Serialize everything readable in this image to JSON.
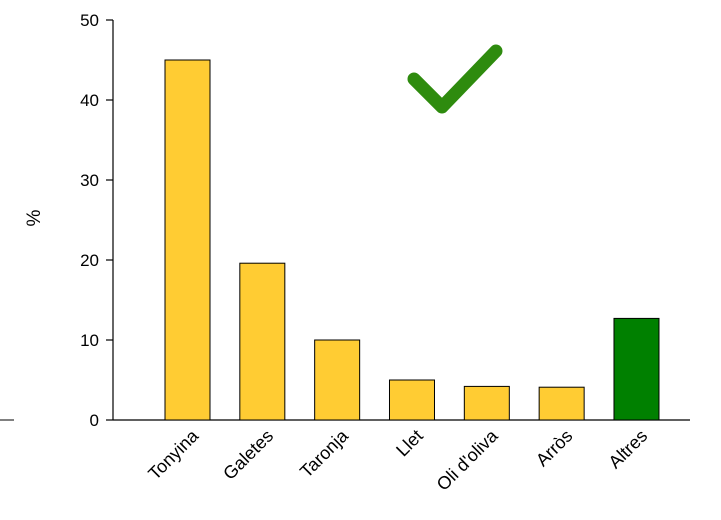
{
  "chart_data": {
    "type": "bar",
    "title": "",
    "xlabel": "",
    "ylabel": "%",
    "ylim": [
      0,
      50
    ],
    "yticks": [
      0,
      10,
      20,
      30,
      40,
      50
    ],
    "categories": [
      "Tonyina",
      "Galetes",
      "Taronja",
      "Llet",
      "Oli d'oliva",
      "Arròs",
      "Altres"
    ],
    "values": [
      45,
      19.6,
      10,
      5,
      4.2,
      4.1,
      12.7
    ],
    "bar_colors": [
      "#FFCC33",
      "#FFCC33",
      "#FFCC33",
      "#FFCC33",
      "#FFCC33",
      "#FFCC33",
      "#008000"
    ],
    "grid": false,
    "legend": "none",
    "annotation_icon": "checkmark-icon",
    "annotation_color": "#2E8B0E"
  }
}
